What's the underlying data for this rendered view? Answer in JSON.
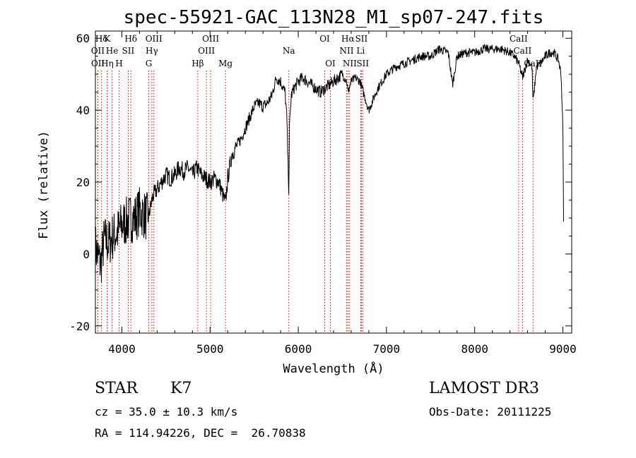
{
  "chart_data": {
    "type": "line",
    "title": "spec-55921-GAC_113N28_M1_sp07-247.fits",
    "xlabel": "Wavelength (Å)",
    "ylabel": "Flux (relative)",
    "xlim": [
      3700,
      9100
    ],
    "ylim": [
      -22,
      62
    ],
    "xticks": [
      4000,
      5000,
      6000,
      7000,
      8000,
      9000
    ],
    "yticks": [
      -20,
      0,
      20,
      40,
      60
    ],
    "spectrum": {
      "x": [
        3700,
        3760,
        3800,
        3850,
        3900,
        3950,
        4000,
        4050,
        4100,
        4150,
        4200,
        4250,
        4300,
        4350,
        4400,
        4450,
        4500,
        4550,
        4600,
        4650,
        4700,
        4750,
        4800,
        4850,
        4900,
        4950,
        5000,
        5050,
        5100,
        5150,
        5175,
        5200,
        5250,
        5300,
        5350,
        5400,
        5450,
        5500,
        5550,
        5600,
        5650,
        5700,
        5750,
        5800,
        5850,
        5870,
        5893,
        5900,
        5920,
        5950,
        6000,
        6050,
        6100,
        6150,
        6200,
        6250,
        6300,
        6350,
        6400,
        6450,
        6500,
        6550,
        6563,
        6600,
        6650,
        6700,
        6750,
        6800,
        6850,
        6900,
        7000,
        7100,
        7200,
        7300,
        7400,
        7500,
        7600,
        7700,
        7750,
        7800,
        7900,
        8000,
        8100,
        8200,
        8300,
        8400,
        8450,
        8500,
        8542,
        8600,
        8650,
        8662,
        8700,
        8750,
        8800,
        8850,
        8900,
        8950,
        8980,
        9000,
        9010
      ],
      "y": [
        2,
        -3,
        4,
        3,
        5,
        6,
        8,
        9,
        10,
        10,
        12,
        11,
        10,
        16,
        18,
        20,
        22,
        21,
        22,
        24,
        23,
        24,
        22,
        24,
        22,
        21,
        20,
        21,
        20,
        16,
        14,
        21,
        28,
        30,
        32,
        35,
        38,
        41,
        42,
        41,
        42,
        44,
        49,
        48,
        45,
        38,
        17,
        35,
        44,
        46,
        48,
        49,
        48,
        47,
        46,
        45,
        46,
        47,
        48,
        49,
        50,
        48,
        45,
        48,
        49,
        48,
        44,
        40,
        43,
        46,
        50,
        52,
        53,
        54,
        55,
        55,
        57,
        56,
        47,
        55,
        56,
        56,
        57,
        57,
        57,
        56,
        55,
        53,
        49,
        54,
        52,
        42,
        52,
        53,
        55,
        56,
        56,
        54,
        50,
        35,
        4
      ]
    },
    "spectral_lines": [
      {
        "name": "Hδ",
        "wavelength": 3770,
        "row": 0
      },
      {
        "name": "OII",
        "wavelength": 3727,
        "row": 1
      },
      {
        "name": "OII",
        "wavelength": 3729,
        "row": 2
      },
      {
        "name": "K",
        "wavelength": 3834,
        "row": 0
      },
      {
        "name": "He",
        "wavelength": 3889,
        "row": 1
      },
      {
        "name": "Hη",
        "wavelength": 3835,
        "row": 2
      },
      {
        "name": "H",
        "wavelength": 3968,
        "row": 2
      },
      {
        "name": "Hδ",
        "wavelength": 4102,
        "row": 0
      },
      {
        "name": "SII",
        "wavelength": 4072,
        "row": 1
      },
      {
        "name": "OIII",
        "wavelength": 4363,
        "row": 0
      },
      {
        "name": "Hγ",
        "wavelength": 4340,
        "row": 1
      },
      {
        "name": "G",
        "wavelength": 4305,
        "row": 2
      },
      {
        "name": "OIII",
        "wavelength": 5007,
        "row": 0
      },
      {
        "name": "OIII",
        "wavelength": 4959,
        "row": 1
      },
      {
        "name": "Hβ",
        "wavelength": 4861,
        "row": 2
      },
      {
        "name": "Mg",
        "wavelength": 5175,
        "row": 2
      },
      {
        "name": "Na",
        "wavelength": 5893,
        "row": 1
      },
      {
        "name": "OI",
        "wavelength": 6300,
        "row": 0
      },
      {
        "name": "OI",
        "wavelength": 6364,
        "row": 2
      },
      {
        "name": "Hα",
        "wavelength": 6563,
        "row": 0
      },
      {
        "name": "SII",
        "wavelength": 6716,
        "row": 0
      },
      {
        "name": "NII",
        "wavelength": 6548,
        "row": 1
      },
      {
        "name": "Li",
        "wavelength": 6708,
        "row": 1
      },
      {
        "name": "NII",
        "wavelength": 6583,
        "row": 2
      },
      {
        "name": "SII",
        "wavelength": 6731,
        "row": 2
      },
      {
        "name": "CaII",
        "wavelength": 8498,
        "row": 0
      },
      {
        "name": "CaII",
        "wavelength": 8542,
        "row": 1
      },
      {
        "name": "CaII",
        "wavelength": 8662,
        "row": 2
      }
    ],
    "colors": {
      "spectrum": "#000000",
      "lines": "#d40000",
      "axes": "#000000"
    }
  },
  "info": {
    "object_class": "STAR",
    "subclass": "K7",
    "survey": "LAMOST DR3",
    "redshift": "cz = 35.0 ± 10.3 km/s",
    "obs_date": "Obs-Date: 20111225",
    "coords": "RA = 114.94226, DEC =  26.70838"
  }
}
